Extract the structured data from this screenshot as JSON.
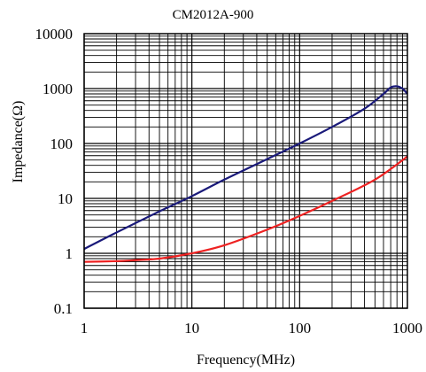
{
  "chart_data": {
    "type": "line",
    "title": "CM2012A-900",
    "xlabel": "Frequency(MHz)",
    "ylabel": "Impedance(Ω)",
    "x_scale": "log",
    "y_scale": "log",
    "xlim": [
      1,
      1000
    ],
    "ylim": [
      0.1,
      10000
    ],
    "x_ticks": [
      "1",
      "10",
      "100",
      "1000"
    ],
    "y_ticks": [
      "0.1",
      "1",
      "10",
      "100",
      "1000",
      "10000"
    ],
    "grid": true,
    "legend": "none",
    "series": [
      {
        "color": "#1a1a7a",
        "x": [
          1,
          2,
          5,
          10,
          20,
          50,
          100,
          200,
          400,
          600,
          700,
          800,
          900,
          1000
        ],
        "y": [
          1.2,
          2.4,
          5.8,
          11,
          22,
          52,
          100,
          200,
          430,
          800,
          1050,
          1100,
          1000,
          800
        ]
      },
      {
        "color": "#ee2222",
        "x": [
          1,
          2,
          3,
          5,
          10,
          20,
          50,
          100,
          200,
          500,
          1000
        ],
        "y": [
          0.7,
          0.72,
          0.75,
          0.8,
          1.0,
          1.4,
          2.7,
          4.8,
          9,
          22,
          58
        ]
      }
    ]
  }
}
